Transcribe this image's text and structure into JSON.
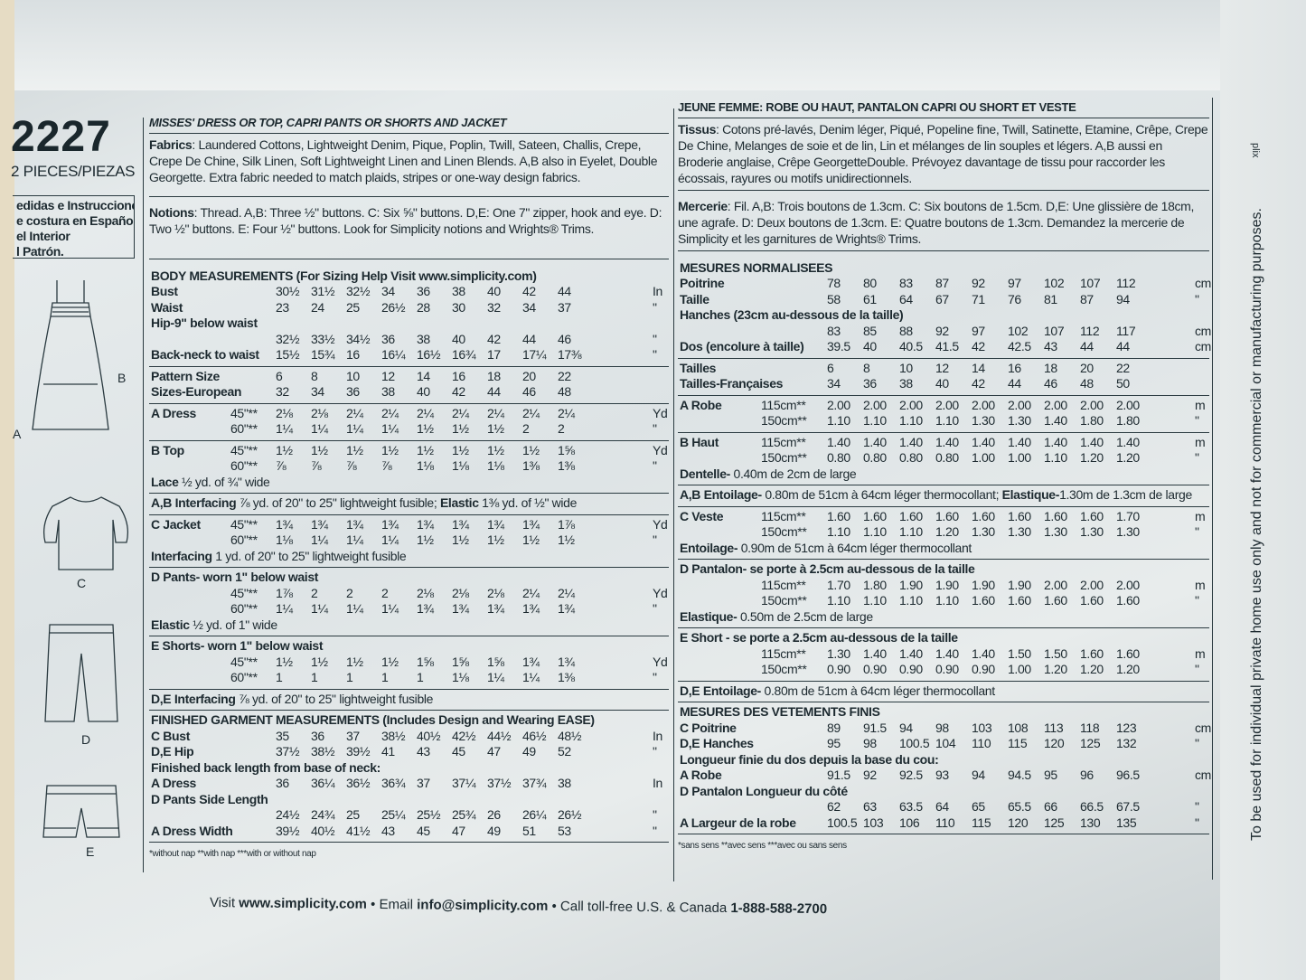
{
  "pattern": {
    "number": "2227",
    "pieces": "2 PIECES/PIEZAS",
    "spanish_box": [
      "edidas e Instrucciones",
      "e costura en Español",
      " el Interior",
      "l Patrón."
    ]
  },
  "views": [
    "B",
    "A",
    "C",
    "D",
    "E"
  ],
  "english": {
    "title": "MISSES' DRESS OR TOP, CAPRI PANTS OR SHORTS AND JACKET",
    "fabrics_label": "Fabrics",
    "fabrics": ": Laundered Cottons, Lightweight Denim, Pique, Poplin, Twill, Sateen, Challis, Crepe, Crepe De Chine, Silk Linen, Soft Lightweight Linen and Linen Blends. A,B also in Eyelet, Double Georgette. Extra fabric needed to match plaids, stripes or one-way design fabrics.",
    "notions_label": "Notions",
    "notions": ": Thread. A,B: Three ½\" buttons. C: Six ⅝\" buttons. D,E: One 7\" zipper, hook and eye. D: Two ½\" buttons. E: Four ½\" buttons. Look for Simplicity notions and Wrights® Trims.",
    "groups": [
      [
        {
          "l": "BODY MEASUREMENTS (For Sizing Help Visit www.simplicity.com)",
          "b": true
        },
        {
          "l": "Bust",
          "b": true,
          "v": [
            "30½",
            "31½",
            "32½",
            "34",
            "36",
            "38",
            "40",
            "42",
            "44"
          ],
          "u": "In"
        },
        {
          "l": "Waist",
          "b": true,
          "v": [
            "23",
            "24",
            "25",
            "26½",
            "28",
            "30",
            "32",
            "34",
            "37"
          ],
          "u": "\""
        },
        {
          "l": "Hip-9\" below waist",
          "b": true
        },
        {
          "v": [
            "32½",
            "33½",
            "34½",
            "36",
            "38",
            "40",
            "42",
            "44",
            "46"
          ],
          "u": "\""
        },
        {
          "l": "Back-neck to waist",
          "b": true,
          "v": [
            "15½",
            "15¾",
            "16",
            "16¼",
            "16½",
            "16¾",
            "17",
            "17¼",
            "17⅜"
          ],
          "u": "\""
        }
      ],
      [
        {
          "l": "Pattern Size",
          "b": true,
          "v": [
            "6",
            "8",
            "10",
            "12",
            "14",
            "16",
            "18",
            "20",
            "22"
          ]
        },
        {
          "l": "Sizes-European",
          "b": true,
          "v": [
            "32",
            "34",
            "36",
            "38",
            "40",
            "42",
            "44",
            "46",
            "48"
          ]
        }
      ],
      [
        {
          "l": "A Dress",
          "b": true,
          "s": "45\"**",
          "v": [
            "2⅛",
            "2⅛",
            "2¼",
            "2¼",
            "2¼",
            "2¼",
            "2¼",
            "2¼",
            "2¼"
          ],
          "u": "Yd"
        },
        {
          "s": "60\"**",
          "v": [
            "1¼",
            "1¼",
            "1¼",
            "1¼",
            "1½",
            "1½",
            "1½",
            "2",
            "2"
          ],
          "u": "\""
        }
      ],
      [
        {
          "l": "B Top",
          "b": true,
          "s": "45\"**",
          "v": [
            "1½",
            "1½",
            "1½",
            "1½",
            "1½",
            "1½",
            "1½",
            "1½",
            "1⅝"
          ],
          "u": "Yd"
        },
        {
          "s": "60\"**",
          "v": [
            "⅞",
            "⅞",
            "⅞",
            "⅞",
            "1⅛",
            "1⅛",
            "1⅛",
            "1⅜",
            "1⅜"
          ],
          "u": "\""
        },
        {
          "bl": "Lace",
          "t": " ½ yd. of ¾\" wide"
        }
      ],
      [
        {
          "bl": "A,B Interfacing",
          "t": " ⅞ yd. of 20\" to 25\" lightweight fusible; ",
          "bl2": "Elastic",
          "t2": " 1⅜ yd. of ½\" wide"
        }
      ],
      [
        {
          "l": "C Jacket",
          "b": true,
          "s": "45\"**",
          "v": [
            "1¾",
            "1¾",
            "1¾",
            "1¾",
            "1¾",
            "1¾",
            "1¾",
            "1¾",
            "1⅞"
          ],
          "u": "Yd"
        },
        {
          "s": "60\"**",
          "v": [
            "1⅛",
            "1¼",
            "1¼",
            "1¼",
            "1½",
            "1½",
            "1½",
            "1½",
            "1½"
          ],
          "u": "\""
        },
        {
          "bl": "Interfacing",
          "t": " 1 yd. of 20\" to 25\" lightweight fusible"
        }
      ],
      [
        {
          "l": "D Pants- worn 1\" below waist",
          "b": true
        },
        {
          "s": "45\"**",
          "v": [
            "1⅞",
            "2",
            "2",
            "2",
            "2⅛",
            "2⅛",
            "2⅛",
            "2¼",
            "2¼"
          ],
          "u": "Yd"
        },
        {
          "s": "60\"**",
          "v": [
            "1¼",
            "1¼",
            "1¼",
            "1¼",
            "1¾",
            "1¾",
            "1¾",
            "1¾",
            "1¾"
          ],
          "u": "\""
        },
        {
          "bl": "Elastic",
          "t": " ½ yd. of 1\" wide"
        }
      ],
      [
        {
          "l": "E Shorts- worn 1\" below waist",
          "b": true
        },
        {
          "s": "45\"**",
          "v": [
            "1½",
            "1½",
            "1½",
            "1½",
            "1⅝",
            "1⅝",
            "1⅝",
            "1¾",
            "1¾"
          ],
          "u": "Yd"
        },
        {
          "s": "60\"**",
          "v": [
            "1",
            "1",
            "1",
            "1",
            "1",
            "1⅛",
            "1¼",
            "1¼",
            "1⅜"
          ],
          "u": "\""
        }
      ],
      [
        {
          "bl": "D,E Interfacing",
          "t": " ⅞ yd. of 20\" to 25\" lightweight fusible"
        }
      ],
      [
        {
          "l": "FINISHED GARMENT MEASUREMENTS (Includes Design and Wearing EASE)",
          "b": true
        },
        {
          "l": "C Bust",
          "b": true,
          "v": [
            "35",
            "36",
            "37",
            "38½",
            "40½",
            "42½",
            "44½",
            "46½",
            "48½"
          ],
          "u": "In"
        },
        {
          "l": "D,E Hip",
          "b": true,
          "v": [
            "37½",
            "38½",
            "39½",
            "41",
            "43",
            "45",
            "47",
            "49",
            "52"
          ],
          "u": "\""
        },
        {
          "l": "Finished back length from base of neck:",
          "b": true
        },
        {
          "l": "A Dress",
          "b": true,
          "v": [
            "36",
            "36¼",
            "36½",
            "36¾",
            "37",
            "37¼",
            "37½",
            "37¾",
            "38"
          ],
          "u": "In"
        },
        {
          "l": "D Pants Side Length",
          "b": true
        },
        {
          "v": [
            "24½",
            "24¾",
            "25",
            "25¼",
            "25½",
            "25¾",
            "26",
            "26¼",
            "26½"
          ],
          "u": "\""
        },
        {
          "l": "A Dress Width",
          "b": true,
          "v": [
            "39½",
            "40½",
            "41½",
            "43",
            "45",
            "47",
            "49",
            "51",
            "53"
          ],
          "u": "\""
        }
      ]
    ],
    "footnote": "*without nap    **with nap    ***with or without nap"
  },
  "french": {
    "title": "JEUNE FEMME: ROBE OU HAUT, PANTALON CAPRI OU SHORT ET VESTE",
    "fabrics_label": "Tissus",
    "fabrics": ": Cotons pré-lavés, Denim léger, Piqué, Popeline fine, Twill, Satinette, Etamine, Crêpe, Crepe De Chine, Melanges de soie et de lin, Lin et mélanges de lin souples et légers. A,B aussi en Broderie anglaise, Crêpe GeorgetteDouble. Prévoyez davantage de tissu pour raccorder les écossais, rayures ou motifs unidirectionnels.",
    "notions_label": "Mercerie",
    "notions": ": Fil. A,B: Trois boutons de 1.3cm. C: Six boutons de 1.5cm. D,E: Une glissière de 18cm, une agrafe. D: Deux boutons de 1.3cm. E: Quatre boutons de 1.3cm. Demandez la mercerie de Simplicity et les garnitures de Wrights® Trims.",
    "groups": [
      [
        {
          "l": "MESURES NORMALISEES",
          "b": true
        },
        {
          "l": "Poitrine",
          "b": true,
          "v": [
            "78",
            "80",
            "83",
            "87",
            "92",
            "97",
            "102",
            "107",
            "112"
          ],
          "u": "cm"
        },
        {
          "l": "Taille",
          "b": true,
          "v": [
            "58",
            "61",
            "64",
            "67",
            "71",
            "76",
            "81",
            "87",
            "94"
          ],
          "u": "\""
        },
        {
          "l": "Hanches (23cm au-dessous de la taille)",
          "b": true
        },
        {
          "v": [
            "83",
            "85",
            "88",
            "92",
            "97",
            "102",
            "107",
            "112",
            "117"
          ],
          "u": "cm"
        },
        {
          "l": "Dos (encolure à taille)",
          "b": true,
          "v": [
            "39.5",
            "40",
            "40.5",
            "41.5",
            "42",
            "42.5",
            "43",
            "44",
            "44"
          ],
          "u": "cm"
        }
      ],
      [
        {
          "l": "Tailles",
          "b": true,
          "v": [
            "6",
            "8",
            "10",
            "12",
            "14",
            "16",
            "18",
            "20",
            "22"
          ]
        },
        {
          "l": "Tailles-Françaises",
          "b": true,
          "v": [
            "34",
            "36",
            "38",
            "40",
            "42",
            "44",
            "46",
            "48",
            "50"
          ]
        }
      ],
      [
        {
          "l": "A Robe",
          "b": true,
          "s": "115cm**",
          "v": [
            "2.00",
            "2.00",
            "2.00",
            "2.00",
            "2.00",
            "2.00",
            "2.00",
            "2.00",
            "2.00"
          ],
          "u": "m"
        },
        {
          "s": "150cm**",
          "v": [
            "1.10",
            "1.10",
            "1.10",
            "1.10",
            "1.30",
            "1.30",
            "1.40",
            "1.80",
            "1.80"
          ],
          "u": "\""
        }
      ],
      [
        {
          "l": "B Haut",
          "b": true,
          "s": "115cm**",
          "v": [
            "1.40",
            "1.40",
            "1.40",
            "1.40",
            "1.40",
            "1.40",
            "1.40",
            "1.40",
            "1.40"
          ],
          "u": "m"
        },
        {
          "s": "150cm**",
          "v": [
            "0.80",
            "0.80",
            "0.80",
            "0.80",
            "1.00",
            "1.00",
            "1.10",
            "1.20",
            "1.20"
          ],
          "u": "\""
        },
        {
          "bl": "Dentelle-",
          "t": " 0.40m de 2cm de large"
        }
      ],
      [
        {
          "bl": "A,B Entoilage-",
          "t": " 0.80m de 51cm à 64cm léger thermocollant; ",
          "bl2": "Elastique-",
          "t2": "1.30m de 1.3cm de large"
        }
      ],
      [
        {
          "l": "C Veste",
          "b": true,
          "s": "115cm**",
          "v": [
            "1.60",
            "1.60",
            "1.60",
            "1.60",
            "1.60",
            "1.60",
            "1.60",
            "1.60",
            "1.70"
          ],
          "u": "m"
        },
        {
          "s": "150cm**",
          "v": [
            "1.10",
            "1.10",
            "1.10",
            "1.20",
            "1.30",
            "1.30",
            "1.30",
            "1.30",
            "1.30"
          ],
          "u": "\""
        },
        {
          "bl": "Entoilage-",
          "t": " 0.90m de 51cm à 64cm léger thermocollant"
        }
      ],
      [
        {
          "l": "D Pantalon- se porte à 2.5cm au-dessous de la taille",
          "b": true
        },
        {
          "s": "115cm**",
          "v": [
            "1.70",
            "1.80",
            "1.90",
            "1.90",
            "1.90",
            "1.90",
            "2.00",
            "2.00",
            "2.00"
          ],
          "u": "m"
        },
        {
          "s": "150cm**",
          "v": [
            "1.10",
            "1.10",
            "1.10",
            "1.10",
            "1.60",
            "1.60",
            "1.60",
            "1.60",
            "1.60"
          ],
          "u": "\""
        },
        {
          "bl": "Elastique-",
          "t": " 0.50m de 2.5cm de large"
        }
      ],
      [
        {
          "l": "E Short - se porte a 2.5cm au-dessous de la taille",
          "b": true
        },
        {
          "s": "115cm**",
          "v": [
            "1.30",
            "1.40",
            "1.40",
            "1.40",
            "1.40",
            "1.50",
            "1.50",
            "1.60",
            "1.60"
          ],
          "u": "m"
        },
        {
          "s": "150cm**",
          "v": [
            "0.90",
            "0.90",
            "0.90",
            "0.90",
            "0.90",
            "1.00",
            "1.20",
            "1.20",
            "1.20"
          ],
          "u": "\""
        }
      ],
      [
        {
          "bl": "D,E Entoilage-",
          "t": " 0.80m de 51cm à 64cm léger thermocollant"
        }
      ],
      [
        {
          "l": "MESURES DES VETEMENTS FINIS",
          "b": true
        },
        {
          "l": "C Poitrine",
          "b": true,
          "v": [
            "89",
            "91.5",
            "94",
            "98",
            "103",
            "108",
            "113",
            "118",
            "123"
          ],
          "u": "cm"
        },
        {
          "l": "D,E Hanches",
          "b": true,
          "v": [
            "95",
            "98",
            "100.5",
            "104",
            "110",
            "115",
            "120",
            "125",
            "132"
          ],
          "u": "\""
        },
        {
          "l": "Longueur finie du dos depuis la base du cou:",
          "b": true
        },
        {
          "l": "A Robe",
          "b": true,
          "v": [
            "91.5",
            "92",
            "92.5",
            "93",
            "94",
            "94.5",
            "95",
            "96",
            "96.5"
          ],
          "u": "cm"
        },
        {
          "l": "D Pantalon Longueur du côté",
          "b": true
        },
        {
          "v": [
            "62",
            "63",
            "63.5",
            "64",
            "65",
            "65.5",
            "66",
            "66.5",
            "67.5"
          ],
          "u": "\""
        },
        {
          "l": "A Largeur de la robe",
          "b": true,
          "v": [
            "100.5",
            "103",
            "106",
            "110",
            "115",
            "120",
            "125",
            "130",
            "135"
          ],
          "u": "\""
        }
      ]
    ],
    "footnote": "*sans sens    **avec sens    ***avec ou sans sens"
  },
  "footer": {
    "visit": "Visit ",
    "site": "www.simplicity.com",
    "email_label": " • Email ",
    "email": "info@simplicity.com",
    "call": " • Call toll-free U.S. & Canada ",
    "phone": "1-888-588-2700"
  },
  "side_notice": "To be used for individual private home use only and not for commercial or manufacturing purposes.",
  "corner_text": "plix"
}
